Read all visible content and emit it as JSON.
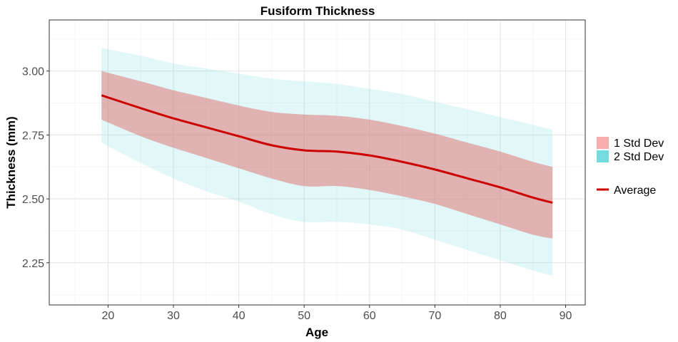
{
  "chart_data": {
    "type": "area",
    "title": "Fusiform Thickness",
    "xlabel": "Age",
    "ylabel": "Thickness (mm)",
    "xlim": [
      11,
      93
    ],
    "ylim": [
      2.085,
      3.2
    ],
    "x_ticks": [
      20,
      30,
      40,
      50,
      60,
      70,
      80,
      90
    ],
    "y_ticks": [
      2.25,
      2.5,
      2.75,
      3.0
    ],
    "y_tick_labels": [
      "2.25",
      "2.50",
      "2.75",
      "3.00"
    ],
    "grid": true,
    "legend_position": "right",
    "x": [
      19,
      25,
      30,
      35,
      40,
      45,
      50,
      55,
      60,
      65,
      70,
      75,
      80,
      85,
      88
    ],
    "series": [
      {
        "name": "2 Std Dev",
        "type": "band",
        "color": "#76DBDF",
        "opacity": 0.22,
        "upper": [
          3.09,
          3.06,
          3.03,
          3.01,
          2.99,
          2.97,
          2.96,
          2.95,
          2.93,
          2.91,
          2.88,
          2.85,
          2.82,
          2.79,
          2.77
        ],
        "lower": [
          2.72,
          2.64,
          2.58,
          2.53,
          2.49,
          2.44,
          2.41,
          2.41,
          2.4,
          2.38,
          2.34,
          2.3,
          2.26,
          2.22,
          2.2
        ]
      },
      {
        "name": "1 Std Dev",
        "type": "band",
        "color": "#E06D6A",
        "opacity": 0.5,
        "upper": [
          3.0,
          2.96,
          2.925,
          2.895,
          2.865,
          2.84,
          2.83,
          2.825,
          2.81,
          2.785,
          2.755,
          2.72,
          2.685,
          2.645,
          2.625
        ],
        "lower": [
          2.81,
          2.745,
          2.7,
          2.66,
          2.62,
          2.58,
          2.55,
          2.55,
          2.535,
          2.51,
          2.48,
          2.44,
          2.4,
          2.36,
          2.345
        ]
      },
      {
        "name": "Average",
        "type": "line",
        "color": "#CC0000",
        "values": [
          2.905,
          2.855,
          2.815,
          2.78,
          2.745,
          2.71,
          2.69,
          2.685,
          2.67,
          2.645,
          2.615,
          2.58,
          2.545,
          2.505,
          2.485
        ]
      }
    ],
    "legend": [
      {
        "label": "1 Std Dev",
        "kind": "fill",
        "color": "#F5AEAC"
      },
      {
        "label": "2 Std Dev",
        "kind": "fill",
        "color": "#76DBDF"
      },
      {
        "label": "Average",
        "kind": "line",
        "color": "#CC0000"
      }
    ]
  }
}
